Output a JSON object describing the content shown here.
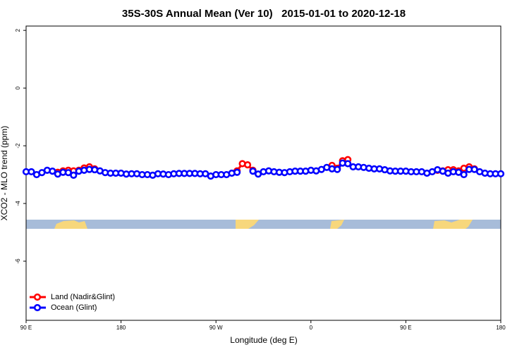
{
  "chart_data": {
    "type": "line",
    "title": "35S-30S Annual Mean (Ver 10)   2015-01-01 to 2020-12-18",
    "xlabel": "Longitude (deg E)",
    "ylabel": "XCO2 - MLO trend (ppm)",
    "xlim": [
      90,
      540
    ],
    "ylim": [
      -8.05,
      2.15
    ],
    "xticks": [
      {
        "value": 90,
        "label": "90 E"
      },
      180,
      {
        "value": 270,
        "label": "90 W"
      },
      {
        "value": 360,
        "label": "0"
      },
      {
        "value": 450,
        "label": "90 E"
      },
      {
        "value": 540,
        "label": "180"
      }
    ],
    "yticks": [
      2,
      0,
      -2,
      -4,
      -6
    ],
    "legend": "bottomleft",
    "series": [
      {
        "name": "Land (Nadir&Glint)",
        "color": "#ff0000",
        "x": [
          120,
          125,
          130,
          135,
          140,
          145,
          150,
          155,
          160,
          290,
          295,
          300,
          305,
          310,
          380,
          385,
          390,
          395,
          400,
          480,
          485,
          490,
          495,
          500,
          505,
          510,
          515
        ],
        "values": [
          -2.92,
          -2.87,
          -2.85,
          -2.87,
          -2.85,
          -2.77,
          -2.73,
          -2.8,
          null,
          -2.87,
          -2.62,
          -2.66,
          -2.85,
          null,
          -2.68,
          -2.78,
          -2.52,
          -2.48,
          null,
          -2.85,
          -2.87,
          -2.83,
          -2.83,
          -2.87,
          -2.78,
          -2.73,
          -2.8
        ]
      },
      {
        "name": "Ocean (Glint)",
        "color": "#0000ff",
        "x": [
          90,
          95,
          100,
          105,
          110,
          115,
          120,
          125,
          130,
          135,
          140,
          145,
          150,
          155,
          160,
          165,
          170,
          175,
          180,
          185,
          190,
          195,
          200,
          205,
          210,
          215,
          220,
          225,
          230,
          235,
          240,
          245,
          250,
          255,
          260,
          265,
          270,
          275,
          280,
          285,
          290,
          295,
          300,
          305,
          310,
          315,
          320,
          325,
          330,
          335,
          340,
          345,
          350,
          355,
          360,
          365,
          370,
          375,
          380,
          385,
          390,
          395,
          400,
          405,
          410,
          415,
          420,
          425,
          430,
          435,
          440,
          445,
          450,
          455,
          460,
          465,
          470,
          475,
          480,
          485,
          490,
          495,
          500,
          505,
          510,
          515,
          520,
          525,
          530,
          535,
          540
        ],
        "values": [
          -2.9,
          -2.9,
          -3.0,
          -2.93,
          -2.85,
          -2.88,
          -2.98,
          -2.92,
          -2.93,
          -3.02,
          -2.88,
          -2.85,
          -2.82,
          -2.83,
          -2.87,
          -2.93,
          -2.95,
          -2.95,
          -2.95,
          -2.98,
          -2.97,
          -2.97,
          -3.0,
          -3.0,
          -3.02,
          -2.97,
          -2.98,
          -3.0,
          -2.97,
          -2.96,
          -2.96,
          -2.96,
          -2.96,
          -2.97,
          -2.97,
          -3.05,
          -3.0,
          -3.0,
          -3.0,
          -2.95,
          -2.92,
          null,
          null,
          -2.88,
          -2.98,
          -2.9,
          -2.87,
          -2.9,
          -2.92,
          -2.93,
          -2.9,
          -2.88,
          -2.88,
          -2.88,
          -2.85,
          -2.87,
          -2.82,
          -2.75,
          -2.8,
          -2.82,
          -2.6,
          -2.62,
          -2.73,
          -2.73,
          -2.75,
          -2.78,
          -2.8,
          -2.8,
          -2.83,
          -2.87,
          -2.88,
          -2.88,
          -2.88,
          -2.9,
          -2.9,
          -2.9,
          -2.95,
          -2.9,
          -2.83,
          -2.88,
          -2.95,
          -2.9,
          -2.92,
          -3.0,
          -2.82,
          -2.82,
          -2.9,
          -2.95,
          -2.97,
          -2.97,
          -2.97
        ]
      }
    ]
  }
}
